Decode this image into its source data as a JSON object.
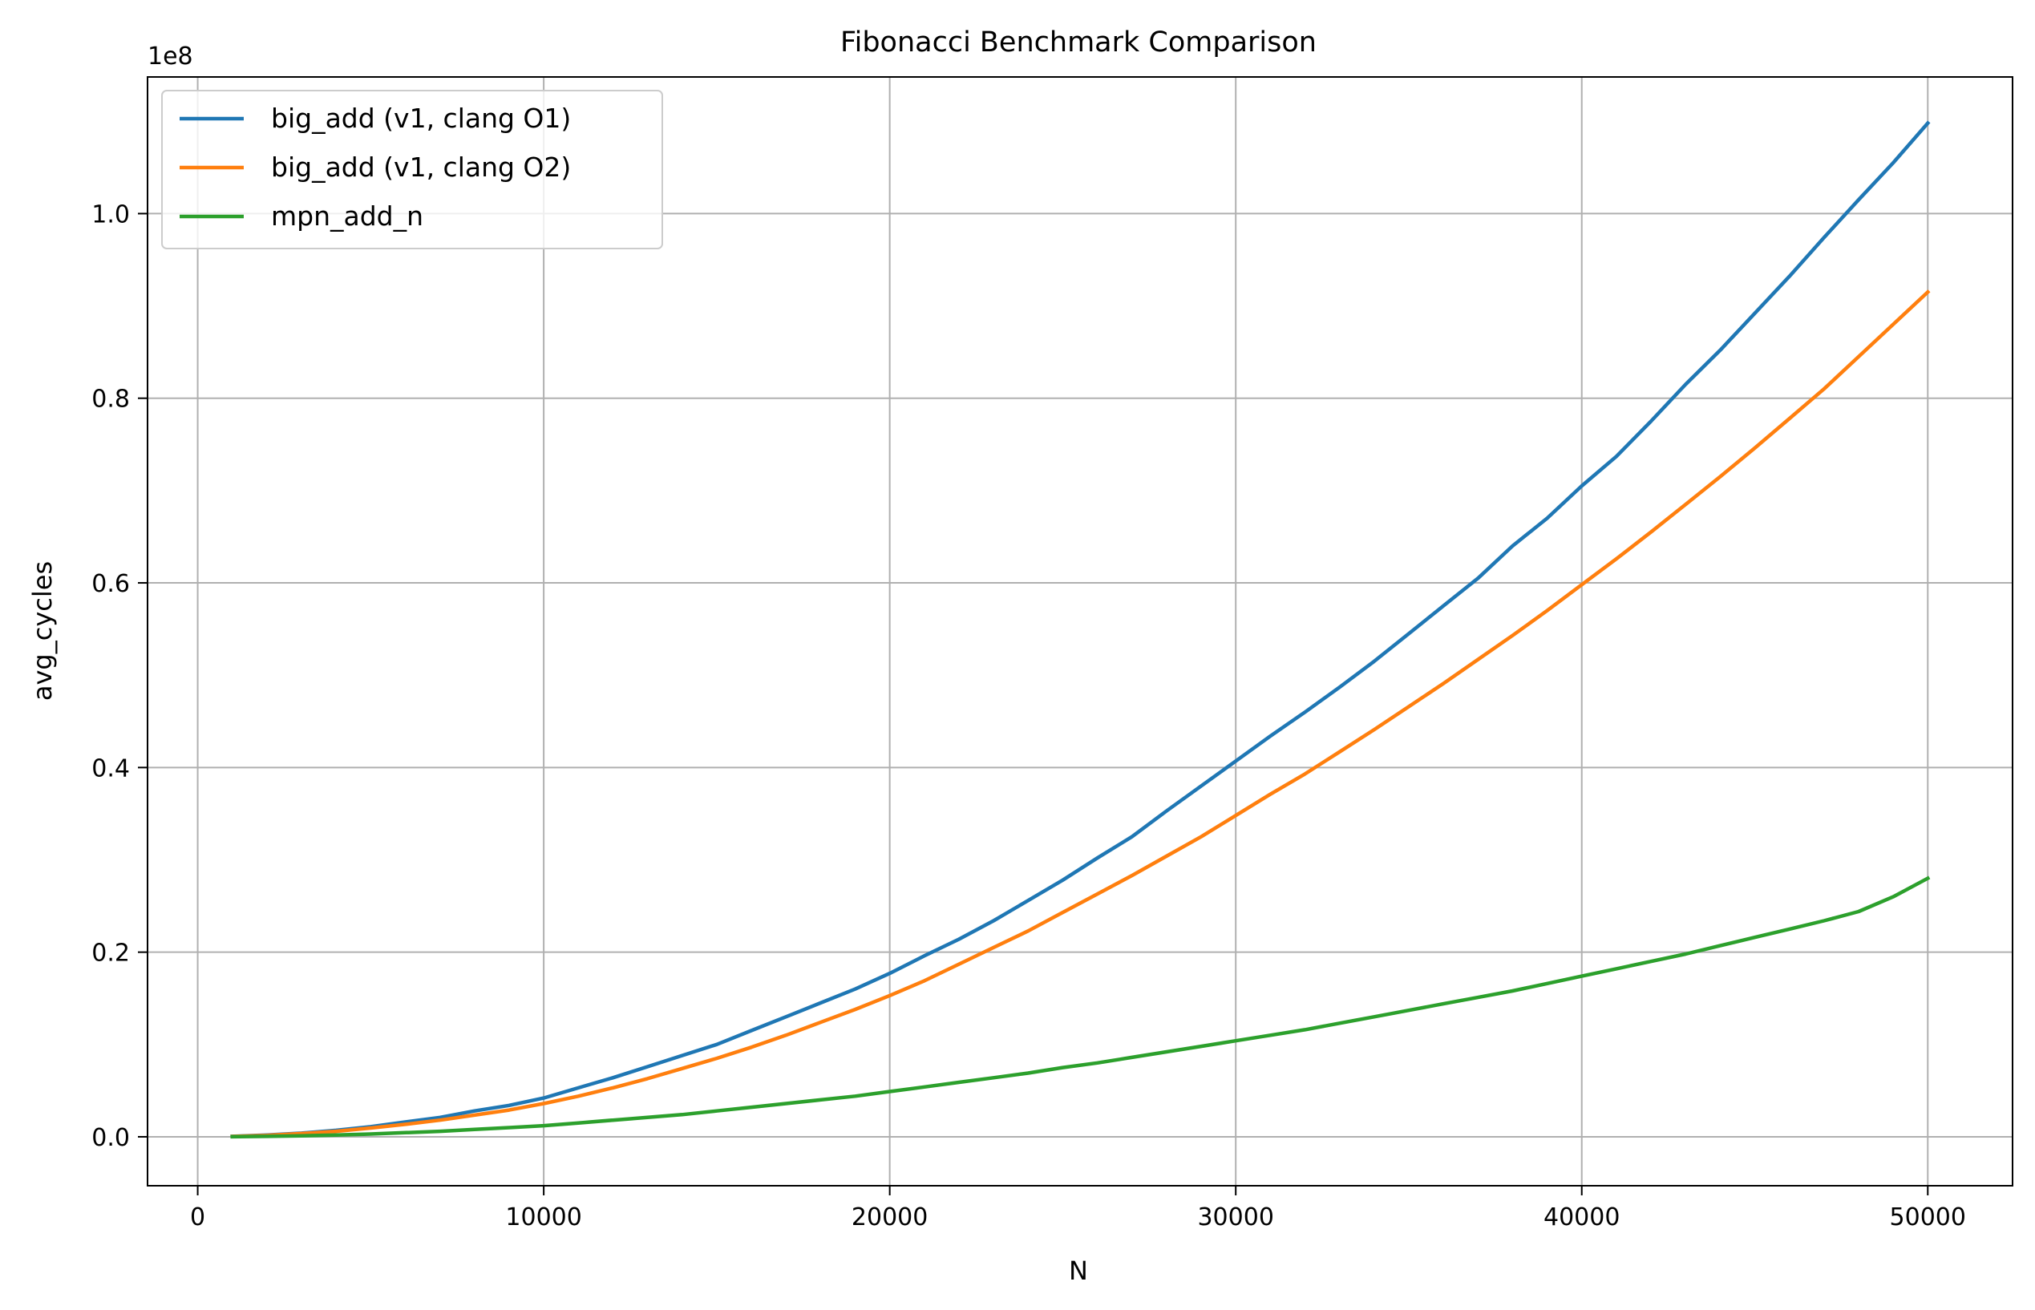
{
  "chart_data": {
    "type": "line",
    "title": "Fibonacci Benchmark Comparison",
    "xlabel": "N",
    "ylabel": "avg_cycles",
    "y_offset_label": "1e8",
    "xlim": [
      -1450,
      52450
    ],
    "ylim": [
      -5300000,
      114800000
    ],
    "x_ticks": [
      0,
      10000,
      20000,
      30000,
      40000,
      50000
    ],
    "x_tick_labels": [
      "0",
      "10000",
      "20000",
      "30000",
      "40000",
      "50000"
    ],
    "y_ticks": [
      0,
      20000000,
      40000000,
      60000000,
      80000000,
      100000000
    ],
    "y_tick_labels": [
      "0.0",
      "0.2",
      "0.4",
      "0.6",
      "0.8",
      "1.0"
    ],
    "grid": true,
    "legend_position": "upper-left",
    "x": [
      1000,
      2000,
      3000,
      4000,
      5000,
      6000,
      7000,
      8000,
      9000,
      10000,
      11000,
      12000,
      13000,
      14000,
      15000,
      16000,
      17000,
      18000,
      19000,
      20000,
      21000,
      22000,
      23000,
      24000,
      25000,
      26000,
      27000,
      28000,
      29000,
      30000,
      31000,
      32000,
      33000,
      34000,
      35000,
      36000,
      37000,
      38000,
      39000,
      40000,
      41000,
      42000,
      43000,
      44000,
      45000,
      46000,
      47000,
      48000,
      49000,
      50000
    ],
    "series": [
      {
        "name": "big_add (v1, clang O1)",
        "color": "#1f77b4",
        "values": [
          50000,
          200000,
          400000,
          700000,
          1100000,
          1600000,
          2100000,
          2800000,
          3400000,
          4200000,
          5300000,
          6400000,
          7600000,
          8800000,
          10000000,
          11500000,
          13000000,
          14500000,
          16000000,
          17700000,
          19600000,
          21400000,
          23400000,
          25600000,
          27800000,
          30200000,
          32500000,
          35300000,
          38000000,
          40700000,
          43400000,
          46000000,
          48700000,
          51500000,
          54500000,
          57500000,
          60500000,
          64000000,
          67000000,
          70500000,
          73700000,
          77500000,
          81500000,
          85200000,
          89200000,
          93200000,
          97400000,
          101500000,
          105500000,
          109800000
        ]
      },
      {
        "name": "big_add (v1, clang O2)",
        "color": "#ff7f0e",
        "values": [
          40000,
          150000,
          350000,
          600000,
          950000,
          1350000,
          1800000,
          2350000,
          2900000,
          3600000,
          4400000,
          5300000,
          6300000,
          7400000,
          8500000,
          9700000,
          11000000,
          12400000,
          13800000,
          15300000,
          16900000,
          18700000,
          20500000,
          22300000,
          24300000,
          26300000,
          28300000,
          30400000,
          32500000,
          34800000,
          37100000,
          39300000,
          41700000,
          44100000,
          46600000,
          49100000,
          51700000,
          54300000,
          57000000,
          59800000,
          62600000,
          65500000,
          68500000,
          71500000,
          74600000,
          77800000,
          81000000,
          84500000,
          88000000,
          91500000
        ]
      },
      {
        "name": "mpn_add_n",
        "color": "#2ca02c",
        "values": [
          10000,
          50000,
          100000,
          200000,
          300000,
          450000,
          600000,
          800000,
          1000000,
          1200000,
          1500000,
          1800000,
          2100000,
          2400000,
          2800000,
          3200000,
          3600000,
          4000000,
          4400000,
          4900000,
          5400000,
          5900000,
          6400000,
          6900000,
          7500000,
          8000000,
          8600000,
          9200000,
          9800000,
          10400000,
          11000000,
          11600000,
          12300000,
          13000000,
          13700000,
          14400000,
          15100000,
          15800000,
          16600000,
          17400000,
          18200000,
          19000000,
          19800000,
          20700000,
          21600000,
          22500000,
          23400000,
          24400000,
          26000000,
          28000000
        ]
      }
    ]
  }
}
